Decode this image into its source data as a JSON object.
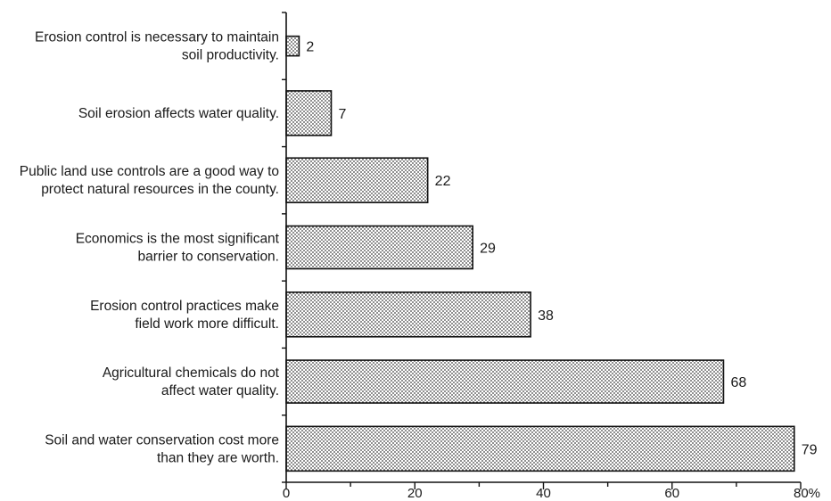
{
  "chart_data": {
    "type": "bar",
    "orientation": "horizontal",
    "categories": [
      [
        "Erosion control is necessary to maintain",
        "soil productivity."
      ],
      [
        "Soil erosion affects water quality."
      ],
      [
        "Public land use controls are a good way to",
        "protect natural resources in the county."
      ],
      [
        "Economics is the most significant",
        "barrier to conservation."
      ],
      [
        "Erosion control practices make",
        "field work more difficult."
      ],
      [
        "Agricultural chemicals do not",
        "affect water quality."
      ],
      [
        "Soil and water conservation cost more",
        "than they are worth."
      ]
    ],
    "values": [
      2,
      7,
      22,
      29,
      38,
      68,
      79
    ],
    "value_labels": [
      "2",
      "7",
      "22",
      "29",
      "38",
      "68",
      "79"
    ],
    "xlim": [
      0,
      80
    ],
    "x_ticks": [
      0,
      20,
      40,
      60,
      80
    ],
    "x_tick_labels": [
      "0",
      "20",
      "40",
      "60",
      "80%"
    ],
    "title": "",
    "xlabel": "",
    "ylabel": "",
    "bar_fill": "dotted stipple",
    "grid": false,
    "legend": "none"
  }
}
